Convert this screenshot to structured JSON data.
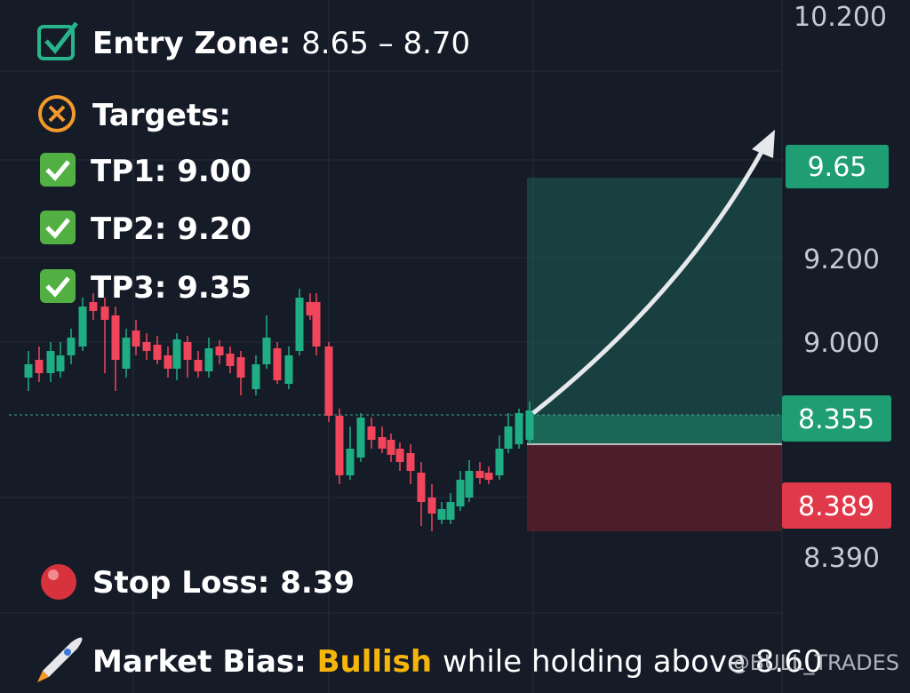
{
  "signals": {
    "entry": {
      "label": "Entry Zone:",
      "value": "8.65 – 8.70"
    },
    "targets": {
      "title": "Targets:",
      "items": [
        "TP1: 9.00",
        "TP2: 9.20",
        "TP3: 9.35"
      ]
    },
    "stop_loss": "Stop Loss: 8.39",
    "bias": {
      "label": "Market Bias:",
      "highlight": "Bullish",
      "text": "while holding above 8.60"
    }
  },
  "price_axis": {
    "labels": [
      "10.200",
      "9.200",
      "9.000",
      "8.390"
    ],
    "badges": {
      "target": "9.65",
      "entry": "8.355",
      "stop": "8.389"
    }
  },
  "watermark": "@BULL_TRADES"
}
